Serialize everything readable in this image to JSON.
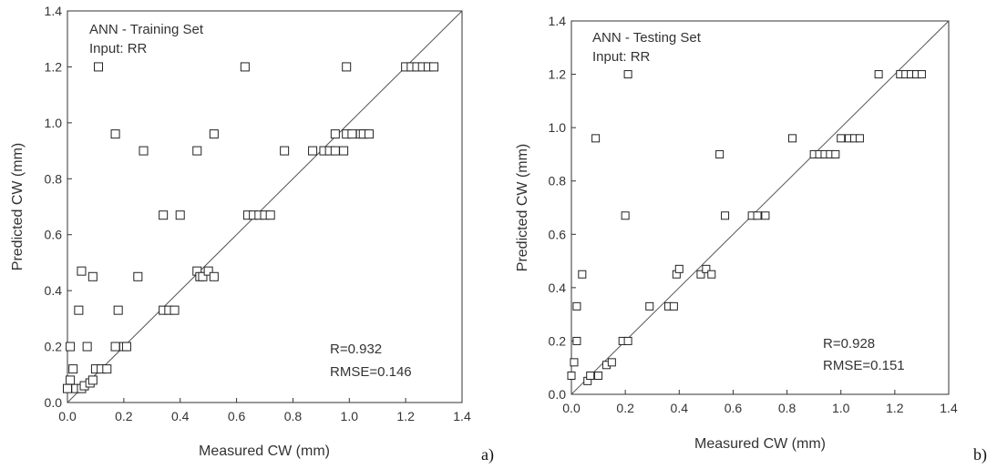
{
  "panel_letters": [
    "a)",
    "b)"
  ],
  "chart_data": [
    {
      "type": "scatter",
      "title": "ANN - Training Set",
      "subtitle": "Input: RR",
      "xlabel": "Measured CW (mm)",
      "ylabel": "Predicted CW (mm)",
      "xlim": [
        0,
        1.4
      ],
      "ylim": [
        0,
        1.4
      ],
      "xticks": [
        "0.0",
        "0.2",
        "0.4",
        "0.6",
        "0.8",
        "1.0",
        "1.2",
        "1.4"
      ],
      "yticks": [
        "0.0",
        "0.2",
        "0.4",
        "0.6",
        "0.8",
        "1.0",
        "1.2",
        "1.4"
      ],
      "reference_line": "y = x",
      "stats": [
        "R=0.932",
        "RMSE=0.146"
      ],
      "marker": "open-square",
      "points": [
        [
          0.0,
          0.05
        ],
        [
          0.01,
          0.08
        ],
        [
          0.02,
          0.12
        ],
        [
          0.03,
          0.05
        ],
        [
          0.05,
          0.05
        ],
        [
          0.06,
          0.06
        ],
        [
          0.08,
          0.07
        ],
        [
          0.09,
          0.08
        ],
        [
          0.1,
          0.12
        ],
        [
          0.12,
          0.12
        ],
        [
          0.14,
          0.12
        ],
        [
          0.01,
          0.2
        ],
        [
          0.07,
          0.2
        ],
        [
          0.17,
          0.2
        ],
        [
          0.2,
          0.2
        ],
        [
          0.21,
          0.2
        ],
        [
          0.04,
          0.33
        ],
        [
          0.18,
          0.33
        ],
        [
          0.34,
          0.33
        ],
        [
          0.36,
          0.33
        ],
        [
          0.38,
          0.33
        ],
        [
          0.05,
          0.47
        ],
        [
          0.09,
          0.45
        ],
        [
          0.25,
          0.45
        ],
        [
          0.46,
          0.47
        ],
        [
          0.47,
          0.45
        ],
        [
          0.48,
          0.45
        ],
        [
          0.5,
          0.47
        ],
        [
          0.52,
          0.45
        ],
        [
          0.34,
          0.67
        ],
        [
          0.4,
          0.67
        ],
        [
          0.64,
          0.67
        ],
        [
          0.66,
          0.67
        ],
        [
          0.68,
          0.67
        ],
        [
          0.7,
          0.67
        ],
        [
          0.72,
          0.67
        ],
        [
          0.27,
          0.9
        ],
        [
          0.46,
          0.9
        ],
        [
          0.77,
          0.9
        ],
        [
          0.87,
          0.9
        ],
        [
          0.91,
          0.9
        ],
        [
          0.93,
          0.9
        ],
        [
          0.95,
          0.9
        ],
        [
          0.98,
          0.9
        ],
        [
          0.17,
          0.96
        ],
        [
          0.52,
          0.96
        ],
        [
          0.95,
          0.96
        ],
        [
          0.99,
          0.96
        ],
        [
          1.01,
          0.96
        ],
        [
          1.04,
          0.96
        ],
        [
          1.05,
          0.96
        ],
        [
          1.07,
          0.96
        ],
        [
          0.11,
          1.2
        ],
        [
          0.63,
          1.2
        ],
        [
          0.99,
          1.2
        ],
        [
          1.2,
          1.2
        ],
        [
          1.22,
          1.2
        ],
        [
          1.24,
          1.2
        ],
        [
          1.26,
          1.2
        ],
        [
          1.28,
          1.2
        ],
        [
          1.3,
          1.2
        ]
      ]
    },
    {
      "type": "scatter",
      "title": "ANN - Testing Set",
      "subtitle": "Input: RR",
      "xlabel": "Measured CW (mm)",
      "ylabel": "Predicted CW (mm)",
      "xlim": [
        0,
        1.4
      ],
      "ylim": [
        0,
        1.4
      ],
      "xticks": [
        "0.0",
        "0.2",
        "0.4",
        "0.6",
        "0.8",
        "1.0",
        "1.2",
        "1.4"
      ],
      "yticks": [
        "0.0",
        "0.2",
        "0.4",
        "0.6",
        "0.8",
        "1.0",
        "1.2",
        "1.4"
      ],
      "reference_line": "y = x",
      "stats": [
        "R=0.928",
        "RMSE=0.151"
      ],
      "marker": "open-square",
      "points": [
        [
          0.0,
          0.07
        ],
        [
          0.01,
          0.12
        ],
        [
          0.06,
          0.05
        ],
        [
          0.07,
          0.07
        ],
        [
          0.1,
          0.07
        ],
        [
          0.13,
          0.11
        ],
        [
          0.15,
          0.12
        ],
        [
          0.02,
          0.2
        ],
        [
          0.19,
          0.2
        ],
        [
          0.21,
          0.2
        ],
        [
          0.02,
          0.33
        ],
        [
          0.29,
          0.33
        ],
        [
          0.36,
          0.33
        ],
        [
          0.38,
          0.33
        ],
        [
          0.04,
          0.45
        ],
        [
          0.39,
          0.45
        ],
        [
          0.4,
          0.47
        ],
        [
          0.48,
          0.45
        ],
        [
          0.5,
          0.47
        ],
        [
          0.52,
          0.45
        ],
        [
          0.2,
          0.67
        ],
        [
          0.57,
          0.67
        ],
        [
          0.67,
          0.67
        ],
        [
          0.69,
          0.67
        ],
        [
          0.72,
          0.67
        ],
        [
          0.55,
          0.9
        ],
        [
          0.9,
          0.9
        ],
        [
          0.92,
          0.9
        ],
        [
          0.94,
          0.9
        ],
        [
          0.96,
          0.9
        ],
        [
          0.98,
          0.9
        ],
        [
          0.09,
          0.96
        ],
        [
          0.82,
          0.96
        ],
        [
          1.0,
          0.96
        ],
        [
          1.03,
          0.96
        ],
        [
          1.05,
          0.96
        ],
        [
          1.07,
          0.96
        ],
        [
          0.21,
          1.2
        ],
        [
          1.14,
          1.2
        ],
        [
          1.22,
          1.2
        ],
        [
          1.24,
          1.2
        ],
        [
          1.26,
          1.2
        ],
        [
          1.28,
          1.2
        ],
        [
          1.3,
          1.2
        ]
      ]
    }
  ]
}
